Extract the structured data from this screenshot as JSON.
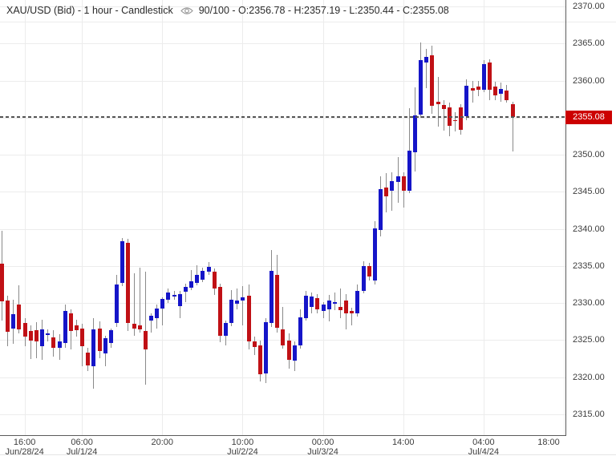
{
  "header": {
    "title": "XAU/USD (Bid) - 1 hour - Candlestick",
    "summary": "90/100 - O:2356.78 - H:2357.19 - L:2350.44 - C:2355.08"
  },
  "current_price": {
    "value": "2355.08"
  },
  "price_axis": {
    "labels": [
      "2370.00",
      "2365.00",
      "2360.00",
      "2355.00",
      "2350.00",
      "2345.00",
      "2340.00",
      "2335.00",
      "2330.00",
      "2325.00",
      "2320.00",
      "2315.00"
    ]
  },
  "time_axis": {
    "ticks": [
      {
        "candle_index": 4,
        "time": "16:00",
        "date": "Jun/28/24"
      },
      {
        "candle_index": 14,
        "time": "06:00",
        "date": "Jul/1/24"
      },
      {
        "candle_index": 28,
        "time": "20:00",
        "date": ""
      },
      {
        "candle_index": 42,
        "time": "10:00",
        "date": "Jul/2/24"
      },
      {
        "candle_index": 56,
        "time": "00:00",
        "date": "Jul/3/24"
      },
      {
        "candle_index": 70,
        "time": "14:00",
        "date": ""
      },
      {
        "candle_index": 84,
        "time": "04:00",
        "date": "Jul/4/24"
      },
      {
        "candle_index": 98,
        "time": "18:00",
        "date": ""
      }
    ]
  },
  "colors": {
    "bull": "#1515c8",
    "bear": "#c01015",
    "wick": "#8a8a8a",
    "grid": "#ececec",
    "axis_line": "#5a5a5a",
    "axis_text": "#3d3d3d",
    "header_text": "#2b2b2b",
    "badge_bg": "#cc0000",
    "badge_text": "#ffffff",
    "dashed_line": "#555555",
    "background": "#ffffff",
    "eye_icon": "#9a9a9a"
  },
  "chart_data": {
    "type": "candlestick",
    "title": "XAU/USD (Bid) - 1 hour - Candlestick",
    "symbol": "XAU/USD",
    "quote_side": "Bid",
    "timeframe": "1 hour",
    "bars_shown": "90/100",
    "legend_position": "none",
    "grid": true,
    "y_axis": {
      "min": 2315,
      "max": 2370,
      "step": 5,
      "side": "right"
    },
    "last_candle_ohlc": {
      "open": 2356.78,
      "high": 2357.19,
      "low": 2350.44,
      "close": 2355.08
    },
    "current_price": 2355.08,
    "candles_format": [
      "open",
      "high",
      "low",
      "close"
    ],
    "candles": [
      [
        2335.3,
        2339.7,
        2327.6,
        2330.2
      ],
      [
        2330.3,
        2331.0,
        2324.2,
        2326.1
      ],
      [
        2326.6,
        2330.4,
        2324.5,
        2328.5
      ],
      [
        2329.8,
        2332.4,
        2325.9,
        2326.5
      ],
      [
        2327.3,
        2328.0,
        2324.2,
        2325.5
      ],
      [
        2326.2,
        2327.0,
        2322.5,
        2324.9
      ],
      [
        2326.3,
        2327.4,
        2322.6,
        2324.8
      ],
      [
        2324.2,
        2327.8,
        2322.4,
        2326.5
      ],
      [
        2325.8,
        2326.5,
        2324.8,
        2325.9
      ],
      [
        2325.4,
        2326.3,
        2322.8,
        2324.0
      ],
      [
        2324.0,
        2325.8,
        2322.4,
        2324.8
      ],
      [
        2324.6,
        2329.8,
        2324.0,
        2328.9
      ],
      [
        2328.6,
        2329.2,
        2323.7,
        2326.2
      ],
      [
        2327.0,
        2327.8,
        2325.5,
        2326.3
      ],
      [
        2326.6,
        2327.2,
        2321.5,
        2324.2
      ],
      [
        2323.3,
        2324.0,
        2320.8,
        2321.6
      ],
      [
        2321.5,
        2328.0,
        2318.5,
        2326.5
      ],
      [
        2326.6,
        2327.5,
        2322.6,
        2323.5
      ],
      [
        2323.2,
        2325.6,
        2321.5,
        2325.3
      ],
      [
        2324.6,
        2326.6,
        2324.0,
        2326.3
      ],
      [
        2327.3,
        2333.8,
        2326.8,
        2332.5
      ],
      [
        2332.7,
        2338.8,
        2332.3,
        2338.3
      ],
      [
        2338.1,
        2338.7,
        2326.2,
        2327.3
      ],
      [
        2327.2,
        2334.0,
        2325.6,
        2326.6
      ],
      [
        2327.0,
        2334.8,
        2326.0,
        2326.5
      ],
      [
        2326.2,
        2334.2,
        2319.0,
        2323.8
      ],
      [
        2327.6,
        2328.6,
        2326.0,
        2328.3
      ],
      [
        2328.0,
        2329.8,
        2326.6,
        2329.3
      ],
      [
        2329.3,
        2330.8,
        2327.0,
        2330.6
      ],
      [
        2330.5,
        2332.0,
        2330.0,
        2331.4
      ],
      [
        2331.0,
        2331.6,
        2330.4,
        2331.1
      ],
      [
        2329.6,
        2331.6,
        2328.0,
        2331.2
      ],
      [
        2331.5,
        2332.6,
        2330.1,
        2332.2
      ],
      [
        2332.1,
        2334.4,
        2331.8,
        2332.9
      ],
      [
        2332.7,
        2335.1,
        2332.4,
        2333.8
      ],
      [
        2333.2,
        2334.8,
        2332.8,
        2334.3
      ],
      [
        2334.2,
        2335.5,
        2333.8,
        2334.9
      ],
      [
        2334.2,
        2334.7,
        2331.1,
        2332.0
      ],
      [
        2332.2,
        2332.6,
        2324.7,
        2325.6
      ],
      [
        2325.6,
        2327.6,
        2324.3,
        2327.3
      ],
      [
        2327.3,
        2331.7,
        2326.9,
        2330.4
      ],
      [
        2329.9,
        2332.0,
        2329.2,
        2330.3
      ],
      [
        2330.3,
        2332.3,
        2327.0,
        2330.8
      ],
      [
        2331.0,
        2332.5,
        2323.8,
        2324.8
      ],
      [
        2324.8,
        2325.5,
        2323.0,
        2324.1
      ],
      [
        2324.3,
        2324.9,
        2319.4,
        2320.4
      ],
      [
        2320.5,
        2328.0,
        2319.2,
        2327.4
      ],
      [
        2327.3,
        2337.2,
        2326.8,
        2334.3
      ],
      [
        2333.8,
        2336.5,
        2326.0,
        2326.7
      ],
      [
        2326.5,
        2329.5,
        2323.9,
        2324.3
      ],
      [
        2324.9,
        2325.9,
        2321.2,
        2322.4
      ],
      [
        2322.2,
        2324.8,
        2320.8,
        2324.3
      ],
      [
        2324.3,
        2329.2,
        2323.9,
        2328.1
      ],
      [
        2328.0,
        2331.6,
        2327.6,
        2331.0
      ],
      [
        2329.5,
        2331.4,
        2328.6,
        2330.9
      ],
      [
        2330.7,
        2331.2,
        2328.6,
        2329.2
      ],
      [
        2328.9,
        2330.1,
        2328.0,
        2329.8
      ],
      [
        2329.2,
        2331.1,
        2327.5,
        2330.3
      ],
      [
        2330.0,
        2331.4,
        2329.0,
        2330.1
      ],
      [
        2329.5,
        2332.0,
        2328.0,
        2329.0
      ],
      [
        2330.3,
        2331.2,
        2326.5,
        2328.6
      ],
      [
        2328.9,
        2329.4,
        2327.0,
        2328.6
      ],
      [
        2328.6,
        2332.5,
        2328.2,
        2331.6
      ],
      [
        2331.6,
        2335.6,
        2331.3,
        2335.0
      ],
      [
        2335.0,
        2335.4,
        2333.0,
        2333.6
      ],
      [
        2333.0,
        2341.0,
        2332.5,
        2340.1
      ],
      [
        2339.9,
        2347.1,
        2339.0,
        2345.4
      ],
      [
        2345.6,
        2347.5,
        2342.2,
        2344.4
      ],
      [
        2345.1,
        2347.6,
        2342.4,
        2346.4
      ],
      [
        2346.3,
        2349.7,
        2343.5,
        2347.1
      ],
      [
        2347.1,
        2347.6,
        2342.9,
        2345.2
      ],
      [
        2345.1,
        2356.3,
        2344.8,
        2350.5
      ],
      [
        2350.3,
        2359.1,
        2347.7,
        2355.3
      ],
      [
        2355.4,
        2365.1,
        2355.0,
        2362.8
      ],
      [
        2362.4,
        2364.3,
        2359.0,
        2363.2
      ],
      [
        2363.4,
        2364.7,
        2355.5,
        2356.6
      ],
      [
        2357.1,
        2360.5,
        2353.8,
        2356.8
      ],
      [
        2356.7,
        2357.4,
        2353.2,
        2356.2
      ],
      [
        2356.4,
        2357.0,
        2352.5,
        2353.9
      ],
      [
        2354.7,
        2355.7,
        2353.1,
        2354.6
      ],
      [
        2356.4,
        2356.8,
        2352.7,
        2353.4
      ],
      [
        2355.2,
        2360.2,
        2354.7,
        2359.3
      ],
      [
        2359.0,
        2359.9,
        2357.0,
        2358.6
      ],
      [
        2359.2,
        2360.0,
        2357.9,
        2358.8
      ],
      [
        2358.8,
        2362.8,
        2358.4,
        2362.2
      ],
      [
        2362.4,
        2362.9,
        2357.4,
        2358.8
      ],
      [
        2359.2,
        2359.8,
        2357.4,
        2358.0
      ],
      [
        2358.2,
        2359.7,
        2357.1,
        2358.9
      ],
      [
        2358.7,
        2359.4,
        2357.0,
        2357.4
      ],
      [
        2356.78,
        2357.19,
        2350.44,
        2355.08
      ]
    ]
  }
}
